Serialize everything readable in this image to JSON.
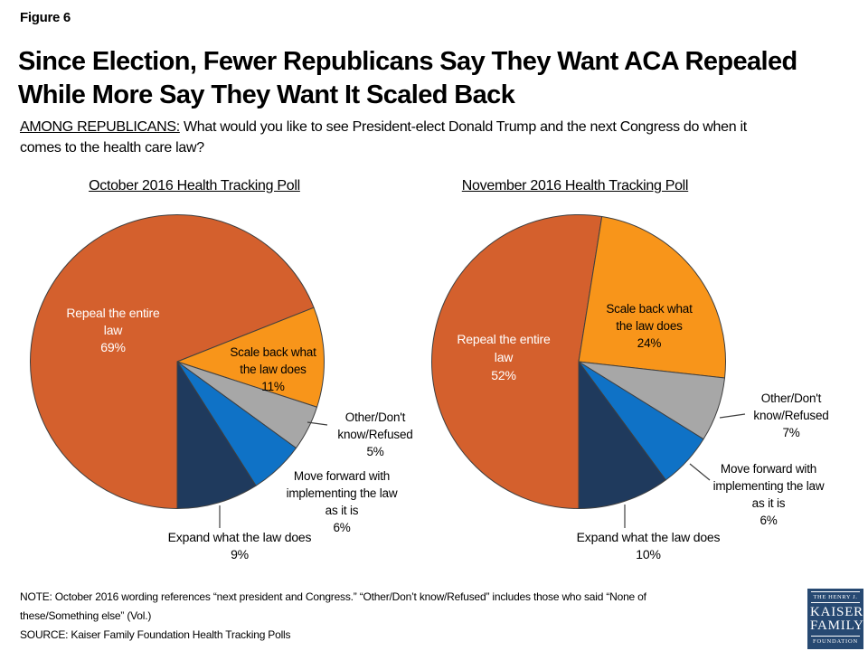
{
  "figure_label": "Figure 6",
  "title_lines": [
    "Since Election, Fewer Republicans Say They Want ACA Repealed",
    "While More Say They Want It Scaled Back"
  ],
  "subtitle": {
    "prefix": "AMONG REPUBLICANS:",
    "line1_rest": " What would you like to see President-elect Donald Trump and the next Congress do when it",
    "line2": "comes to the health care law?"
  },
  "chart_data": [
    {
      "type": "pie",
      "id": "october",
      "title": "October 2016 Health Tracking Poll",
      "start_angle_deg": 180,
      "direction": "clockwise",
      "stroke_color": "#3f3f3f",
      "slices": [
        {
          "id": "repeal",
          "label": "Repeal the entire law",
          "pct": 69,
          "color": "#D4602D",
          "label_lines": [
            "Repeal the entire",
            "law",
            "69%"
          ]
        },
        {
          "id": "scale-back",
          "label": "Scale back what the law does",
          "pct": 11,
          "color": "#F8951A",
          "label_lines": [
            "Scale back what",
            "the law does",
            "11%"
          ]
        },
        {
          "id": "other",
          "label": "Other/Don't know/Refused",
          "pct": 5,
          "color": "#A7A7A7",
          "label_lines": [
            "Other/Don't",
            "know/Refused",
            "5%"
          ]
        },
        {
          "id": "move-forward",
          "label": "Move forward with implementing the law as it is",
          "pct": 6,
          "color": "#0F72C6",
          "label_lines": [
            "Move forward with",
            "implementing the law",
            "as it is",
            "6%"
          ]
        },
        {
          "id": "expand",
          "label": "Expand what the law does",
          "pct": 9,
          "color": "#1F3A5D",
          "label_lines": [
            "Expand what the law does",
            "9%"
          ]
        }
      ]
    },
    {
      "type": "pie",
      "id": "november",
      "title": "November 2016 Health Tracking Poll",
      "start_angle_deg": 180,
      "direction": "clockwise",
      "stroke_color": "#3f3f3f",
      "slices": [
        {
          "id": "repeal",
          "label": "Repeal the entire law",
          "pct": 52,
          "color": "#D4602D",
          "label_lines": [
            "Repeal the entire",
            "law",
            "52%"
          ]
        },
        {
          "id": "scale-back",
          "label": "Scale back what the law does",
          "pct": 24,
          "color": "#F8951A",
          "label_lines": [
            "Scale back what",
            "the law does",
            "24%"
          ]
        },
        {
          "id": "other",
          "label": "Other/Don't know/Refused",
          "pct": 7,
          "color": "#A7A7A7",
          "label_lines": [
            "Other/Don't",
            "know/Refused",
            "7%"
          ]
        },
        {
          "id": "move-forward",
          "label": "Move forward with implementing the law as it is",
          "pct": 6,
          "color": "#0F72C6",
          "label_lines": [
            "Move forward with",
            "implementing the law",
            "as it is",
            "6%"
          ]
        },
        {
          "id": "expand",
          "label": "Expand what the law does",
          "pct": 10,
          "color": "#1F3A5D",
          "label_lines": [
            "Expand what the law does",
            "10%"
          ]
        }
      ]
    }
  ],
  "note_lines": [
    "NOTE: October 2016  wording references “next president and Congress.” “Other/Don’t know/Refused” includes those who said “None of",
    "these/Something else” (Vol.)"
  ],
  "source": "SOURCE: Kaiser Family Foundation Health Tracking Polls",
  "logo": {
    "top": "THE HENRY J.",
    "name1": "KAISER",
    "name2": "FAMILY",
    "bottom": "FOUNDATION"
  }
}
